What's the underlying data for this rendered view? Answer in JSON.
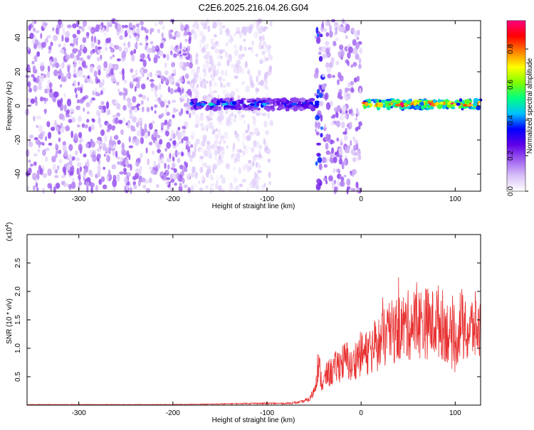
{
  "page": {
    "title": "C2E6.2025.216.04.26.G04"
  },
  "chart_data": [
    {
      "type": "heatmap",
      "title": "C2E6.2025.216.04.26.G04",
      "xlabel": "Height of straight line (km)",
      "ylabel": "Frequency (Hz)",
      "xlim": [
        -355,
        127
      ],
      "ylim": [
        -50,
        50
      ],
      "x_ticks": [
        -300,
        -200,
        -100,
        0,
        100
      ],
      "x_tick_labels": [
        "-300",
        "-200",
        "-100",
        "0",
        "100"
      ],
      "y_ticks": [
        -40,
        -20,
        0,
        20,
        40
      ],
      "y_tick_labels": [
        "-40",
        "-20",
        "0",
        "20",
        "40"
      ],
      "grid": false,
      "colorbar": {
        "label": "Normalized spectral amplitude",
        "range": [
          0,
          0.96
        ],
        "ticks": [
          0.0,
          0.2,
          0.4,
          0.6,
          0.8
        ],
        "tick_labels": [
          "0.0",
          "0.2",
          "0.4",
          "0.6",
          "0.8"
        ],
        "colormap": [
          "#ffffff",
          "#d8c0f8",
          "#a060f0",
          "#6000e8",
          "#0000ff",
          "#00c0ff",
          "#00ff80",
          "#80ff00",
          "#ffff00",
          "#ff8000",
          "#ff0000",
          "#ff0080"
        ]
      },
      "regions": [
        {
          "name": "scattered noise",
          "x_range": [
            -355,
            -180
          ],
          "freq_range": [
            -50,
            50
          ],
          "amplitude": 0.12
        },
        {
          "name": "faded noise",
          "x_range": [
            -180,
            -95
          ],
          "freq_range": [
            -50,
            50
          ],
          "amplitude": 0.05
        },
        {
          "name": "weak carrier band",
          "x_range": [
            -180,
            -45
          ],
          "freq_center": 1,
          "bandwidth": 6,
          "amplitude": 0.4
        },
        {
          "name": "burst",
          "x_range": [
            -48,
            -40
          ],
          "freq_range": [
            -50,
            50
          ],
          "amplitude": 0.25
        },
        {
          "name": "noise",
          "x_range": [
            -40,
            0
          ],
          "freq_range": [
            -50,
            50
          ],
          "amplitude": 0.12
        },
        {
          "name": "strong carrier band",
          "x_range": [
            3,
            127
          ],
          "freq_center": 1,
          "bandwidth": 5,
          "amplitude": 0.9
        }
      ]
    },
    {
      "type": "line",
      "xlabel": "Height of straight line (km)",
      "ylabel": "SNR (10 * v/v)",
      "y_multiplier_label": "(x10",
      "y_multiplier_exponent": "4",
      "y_multiplier_close": ")",
      "xlim": [
        -355,
        127
      ],
      "ylim": [
        0,
        3.0
      ],
      "x_ticks": [
        -300,
        -200,
        -100,
        0,
        100
      ],
      "x_tick_labels": [
        "-300",
        "-200",
        "-100",
        "0",
        "100"
      ],
      "y_ticks": [
        0.5,
        1.0,
        1.5,
        2.0,
        2.5
      ],
      "y_tick_labels": [
        "0.5",
        "1.0",
        "1.5",
        "2.0",
        "2.5"
      ],
      "grid": false,
      "series": [
        {
          "color": "#e83030",
          "x": [
            -355,
            -300,
            -250,
            -200,
            -150,
            -120,
            -100,
            -80,
            -65,
            -55,
            -50,
            -48,
            -46,
            -44,
            -42,
            -40,
            -38,
            -35,
            -30,
            -25,
            -20,
            -15,
            -10,
            -5,
            0,
            5,
            10,
            20,
            30,
            40,
            50,
            60,
            70,
            75,
            80,
            85,
            90,
            95,
            100,
            103,
            106,
            110,
            115,
            120,
            127
          ],
          "y": [
            0.01,
            0.01,
            0.01,
            0.01,
            0.02,
            0.03,
            0.03,
            0.03,
            0.05,
            0.1,
            0.25,
            0.45,
            0.7,
            0.6,
            0.4,
            0.35,
            0.5,
            0.55,
            0.6,
            0.7,
            0.75,
            0.8,
            0.65,
            0.85,
            0.9,
            0.9,
            1.0,
            1.1,
            1.25,
            1.35,
            1.4,
            1.45,
            1.45,
            1.4,
            1.5,
            1.45,
            1.35,
            1.2,
            1.0,
            1.3,
            1.5,
            1.25,
            1.3,
            1.4,
            1.3
          ]
        }
      ]
    }
  ]
}
